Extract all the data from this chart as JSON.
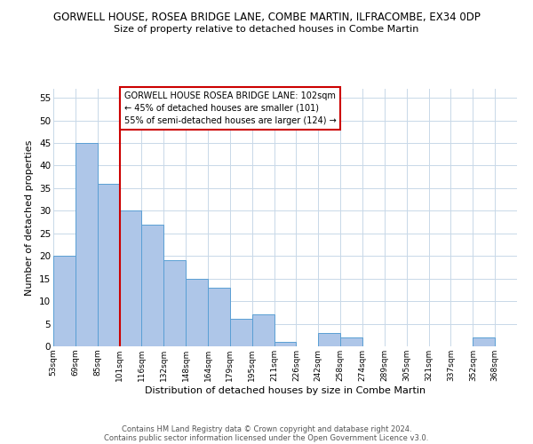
{
  "title": "GORWELL HOUSE, ROSEA BRIDGE LANE, COMBE MARTIN, ILFRACOMBE, EX34 0DP",
  "subtitle": "Size of property relative to detached houses in Combe Martin",
  "xlabel": "Distribution of detached houses by size in Combe Martin",
  "ylabel": "Number of detached properties",
  "bin_labels": [
    "53sqm",
    "69sqm",
    "85sqm",
    "101sqm",
    "116sqm",
    "132sqm",
    "148sqm",
    "164sqm",
    "179sqm",
    "195sqm",
    "211sqm",
    "226sqm",
    "242sqm",
    "258sqm",
    "274sqm",
    "289sqm",
    "305sqm",
    "321sqm",
    "337sqm",
    "352sqm",
    "368sqm"
  ],
  "bar_heights": [
    20,
    45,
    36,
    30,
    27,
    19,
    15,
    13,
    6,
    7,
    1,
    0,
    3,
    2,
    0,
    0,
    0,
    0,
    0,
    2,
    0
  ],
  "bar_color": "#aec6e8",
  "bar_edge_color": "#5a9fd4",
  "vline_x_idx": 3,
  "vline_color": "#cc0000",
  "ylim": [
    0,
    57
  ],
  "yticks": [
    0,
    5,
    10,
    15,
    20,
    25,
    30,
    35,
    40,
    45,
    50,
    55
  ],
  "annotation_title": "GORWELL HOUSE ROSEA BRIDGE LANE: 102sqm",
  "annotation_line1": "← 45% of detached houses are smaller (101)",
  "annotation_line2": "55% of semi-detached houses are larger (124) →",
  "footer_line1": "Contains HM Land Registry data © Crown copyright and database right 2024.",
  "footer_line2": "Contains public sector information licensed under the Open Government Licence v3.0.",
  "background_color": "#ffffff",
  "grid_color": "#c8d8e8"
}
